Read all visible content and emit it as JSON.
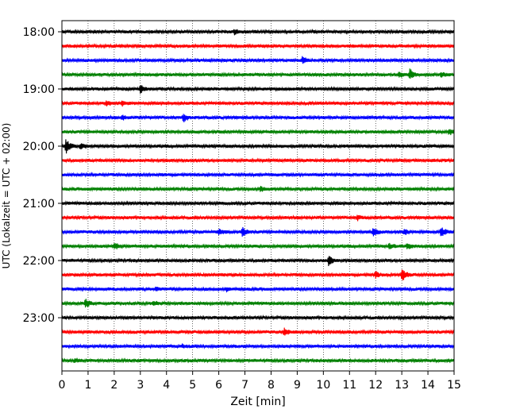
{
  "chart_data": {
    "type": "line",
    "chart_kind": "helicorder",
    "title": "",
    "xlabel": "Zeit  [min]",
    "ylabel": "UTC (Lokalzeit = UTC + 02:00)",
    "xlim": [
      0,
      15
    ],
    "x_ticks": [
      0,
      1,
      2,
      3,
      4,
      5,
      6,
      7,
      8,
      9,
      10,
      11,
      12,
      13,
      14,
      15
    ],
    "x_tick_labels": [
      "0",
      "1",
      "2",
      "3",
      "4",
      "5",
      "6",
      "7",
      "8",
      "9",
      "10",
      "11",
      "12",
      "13",
      "14",
      "15"
    ],
    "x_grid": "dotted vertical lines at each minute",
    "row_interval_minutes": 15,
    "row_start_times": [
      "18:00",
      "18:15",
      "18:30",
      "18:45",
      "19:00",
      "19:15",
      "19:30",
      "19:45",
      "20:00",
      "20:15",
      "20:30",
      "20:45",
      "21:00",
      "21:15",
      "21:30",
      "21:45",
      "22:00",
      "22:15",
      "22:30",
      "22:45",
      "23:00",
      "23:15",
      "23:30",
      "23:45"
    ],
    "y_tick_labels": [
      "18:00",
      "19:00",
      "20:00",
      "21:00",
      "22:00",
      "23:00"
    ],
    "colors": [
      "#000000",
      "#ff0000",
      "#0000ff",
      "#008000"
    ],
    "events": [
      {
        "row": "18:00",
        "minute": 6.6,
        "amplitude": 0.3
      },
      {
        "row": "18:30",
        "minute": 9.2,
        "amplitude": 0.45
      },
      {
        "row": "18:45",
        "minute": 12.9,
        "amplitude": 0.35
      },
      {
        "row": "18:45",
        "minute": 13.3,
        "amplitude": 0.75
      },
      {
        "row": "18:45",
        "minute": 14.5,
        "amplitude": 0.4
      },
      {
        "row": "19:00",
        "minute": 3.0,
        "amplitude": 0.55
      },
      {
        "row": "19:15",
        "minute": 1.7,
        "amplitude": 0.35
      },
      {
        "row": "19:15",
        "minute": 2.3,
        "amplitude": 0.3
      },
      {
        "row": "19:30",
        "minute": 2.3,
        "amplitude": 0.3
      },
      {
        "row": "19:30",
        "minute": 4.65,
        "amplitude": 0.55
      },
      {
        "row": "19:45",
        "minute": 14.8,
        "amplitude": 0.4
      },
      {
        "row": "20:00",
        "minute": 0.15,
        "amplitude": 1.0
      },
      {
        "row": "20:00",
        "minute": 0.7,
        "amplitude": 0.35
      },
      {
        "row": "20:45",
        "minute": 7.6,
        "amplitude": 0.3
      },
      {
        "row": "21:15",
        "minute": 11.3,
        "amplitude": 0.3
      },
      {
        "row": "21:30",
        "minute": 6.0,
        "amplitude": 0.45
      },
      {
        "row": "21:30",
        "minute": 6.9,
        "amplitude": 0.6
      },
      {
        "row": "21:30",
        "minute": 11.9,
        "amplitude": 0.6
      },
      {
        "row": "21:30",
        "minute": 13.1,
        "amplitude": 0.35
      },
      {
        "row": "21:30",
        "minute": 14.5,
        "amplitude": 0.7
      },
      {
        "row": "21:45",
        "minute": 2.0,
        "amplitude": 0.45
      },
      {
        "row": "21:45",
        "minute": 12.5,
        "amplitude": 0.35
      },
      {
        "row": "21:45",
        "minute": 13.2,
        "amplitude": 0.35
      },
      {
        "row": "22:00",
        "minute": 10.2,
        "amplitude": 0.75
      },
      {
        "row": "22:15",
        "minute": 12.0,
        "amplitude": 0.4
      },
      {
        "row": "22:15",
        "minute": 13.0,
        "amplitude": 1.0
      },
      {
        "row": "22:30",
        "minute": 3.6,
        "amplitude": 0.3
      },
      {
        "row": "22:30",
        "minute": 6.3,
        "amplitude": 0.25
      },
      {
        "row": "22:45",
        "minute": 0.9,
        "amplitude": 0.7
      },
      {
        "row": "22:45",
        "minute": 3.5,
        "amplitude": 0.3
      },
      {
        "row": "23:15",
        "minute": 8.5,
        "amplitude": 0.5
      },
      {
        "row": "23:30",
        "minute": 4.6,
        "amplitude": 0.2
      },
      {
        "row": "23:45",
        "minute": 0.5,
        "amplitude": 0.25
      }
    ]
  }
}
